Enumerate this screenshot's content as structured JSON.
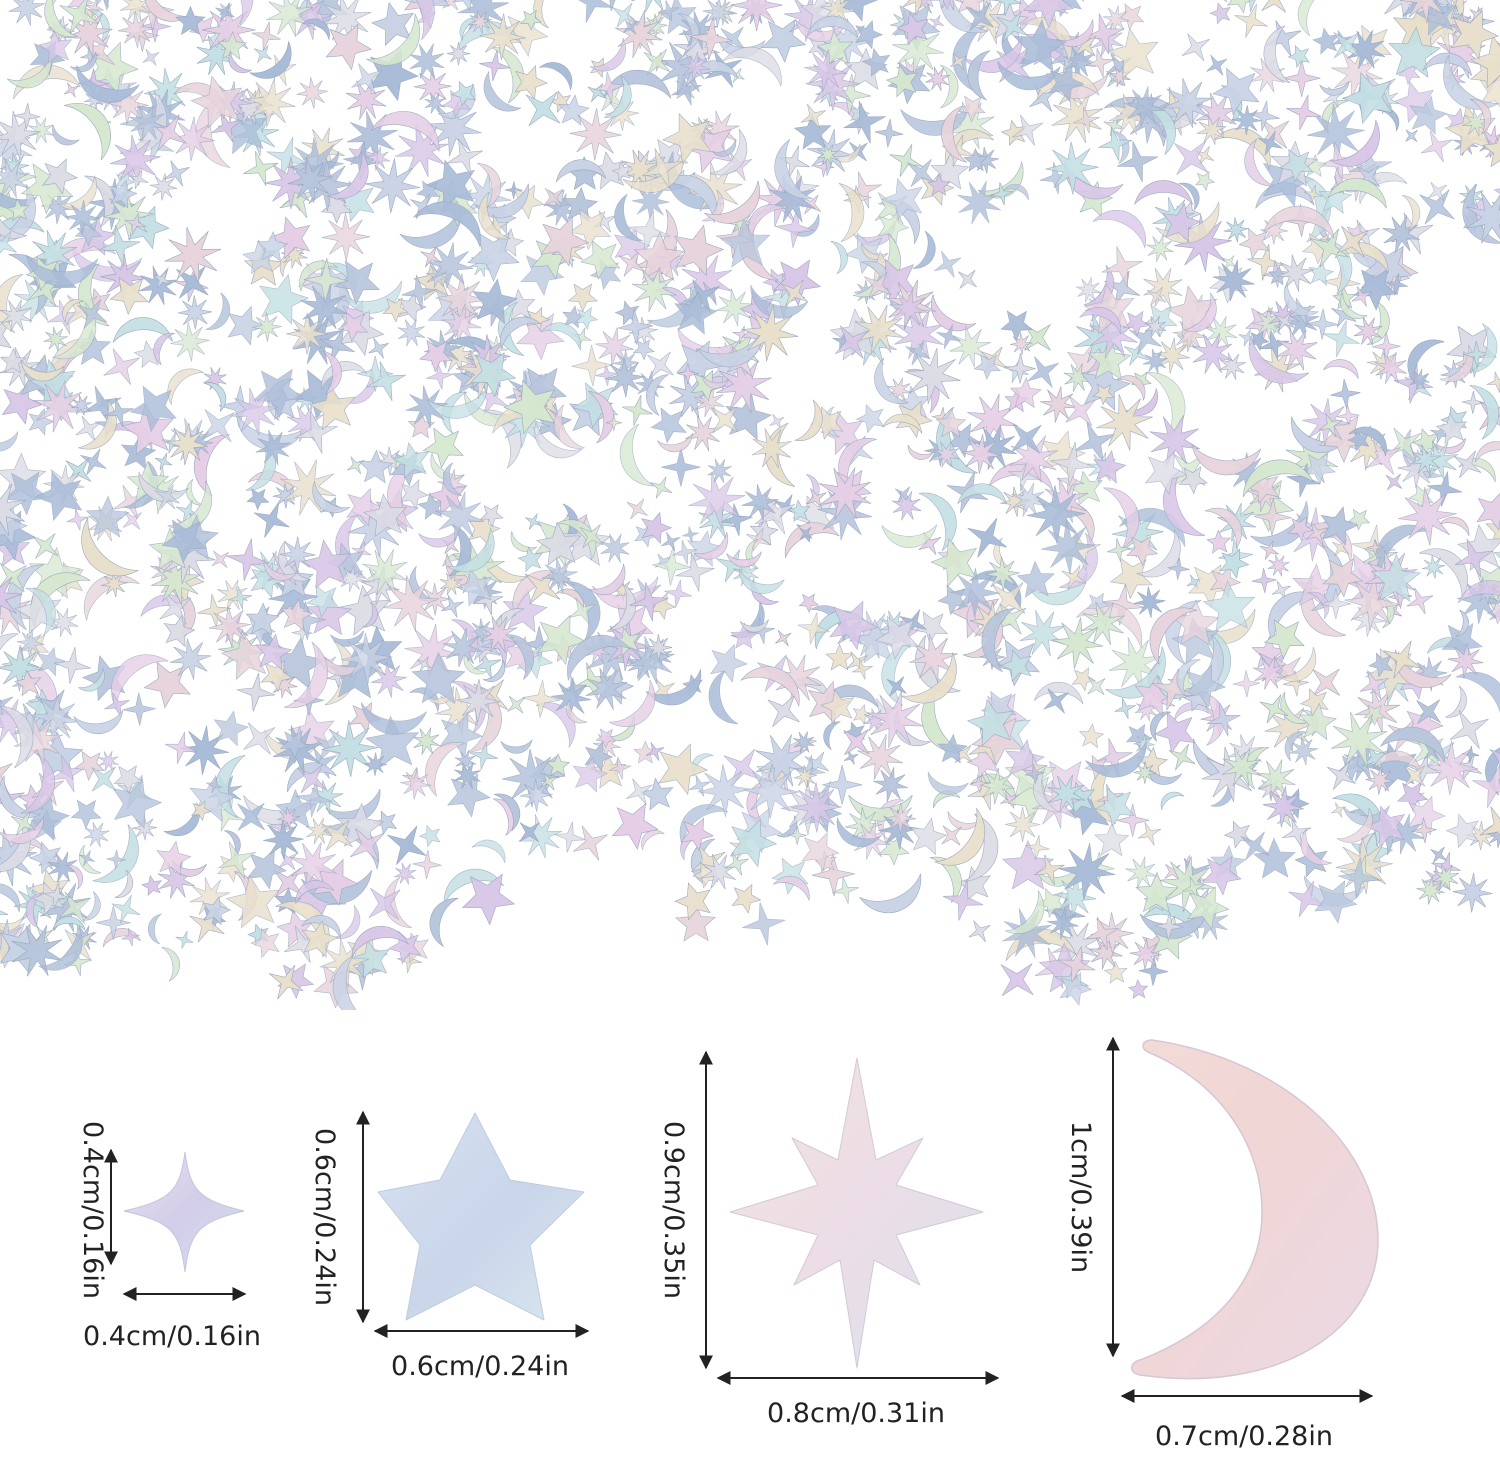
{
  "colors": {
    "background": "#ffffff",
    "ink": "#222222",
    "iridescent": [
      "#c9d3e6",
      "#d9c7e8",
      "#e8d4dc",
      "#c4e0e4",
      "#d6e8d0",
      "#e9e0cc",
      "#b8c6dd",
      "#dcdce6",
      "#a9bcd8",
      "#e6cfe6"
    ]
  },
  "confetti_shapes": [
    "four-point-star",
    "five-point-star",
    "eight-point-star",
    "crescent-moon"
  ],
  "samples": [
    {
      "shape": "four-point-star",
      "height_label": "0.4cm/0.16in",
      "width_label": "0.4cm/0.16in"
    },
    {
      "shape": "five-point-star",
      "height_label": "0.6cm/0.24in",
      "width_label": "0.6cm/0.24in"
    },
    {
      "shape": "eight-point-star",
      "height_label": "0.9cm/0.35in",
      "width_label": "0.8cm/0.31in"
    },
    {
      "shape": "crescent-moon",
      "height_label": "1cm/0.39in",
      "width_label": "0.7cm/0.28in"
    }
  ]
}
